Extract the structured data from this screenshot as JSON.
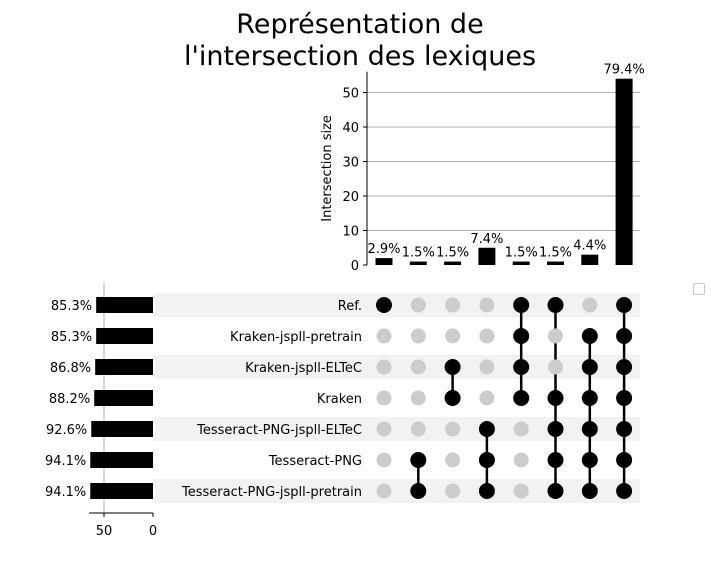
{
  "chart_data": {
    "type": "upset",
    "title_lines": [
      "Représentation de",
      "l'intersection des lexiques"
    ],
    "intersection_axis": {
      "label": "Intersection size",
      "ylim": [
        0,
        56
      ],
      "ticks": [
        0,
        10,
        20,
        30,
        40,
        50
      ],
      "grid": true
    },
    "sets": [
      {
        "name": "Ref.",
        "size": 58,
        "label": "85.3%"
      },
      {
        "name": "Kraken-jspll-pretrain",
        "size": 58,
        "label": "85.3%"
      },
      {
        "name": "Kraken-jspll-ELTeC",
        "size": 59,
        "label": "86.8%"
      },
      {
        "name": "Kraken",
        "size": 60,
        "label": "88.2%"
      },
      {
        "name": "Tesseract-PNG-jspll-ELTeC",
        "size": 63,
        "label": "92.6%"
      },
      {
        "name": "Tesseract-PNG",
        "size": 64,
        "label": "94.1%"
      },
      {
        "name": "Tesseract-PNG-jspll-pretrain",
        "size": 64,
        "label": "94.1%"
      }
    ],
    "set_size_axis": {
      "ticks": [
        50,
        0
      ],
      "xlim": [
        0,
        64
      ]
    },
    "intersections": [
      {
        "value": 2,
        "label": "2.9%",
        "members": [
          0
        ]
      },
      {
        "value": 1,
        "label": "1.5%",
        "members": [
          5,
          6
        ]
      },
      {
        "value": 1,
        "label": "1.5%",
        "members": [
          2,
          3
        ]
      },
      {
        "value": 5,
        "label": "7.4%",
        "members": [
          4,
          5,
          6
        ]
      },
      {
        "value": 1,
        "label": "1.5%",
        "members": [
          0,
          1,
          2,
          3
        ]
      },
      {
        "value": 1,
        "label": "1.5%",
        "members": [
          0,
          3,
          4,
          5,
          6
        ]
      },
      {
        "value": 3,
        "label": "4.4%",
        "members": [
          1,
          2,
          3,
          4,
          5,
          6
        ]
      },
      {
        "value": 54,
        "label": "79.4%",
        "members": [
          0,
          1,
          2,
          3,
          4,
          5,
          6
        ]
      }
    ],
    "legend": {
      "placement": "right",
      "entries": []
    },
    "colors": {
      "bar": "#000000",
      "dot_active": "#000000",
      "dot_inactive": "#cccccc",
      "row_shade": "#f2f2f2",
      "grid": "#b0b0b0"
    }
  }
}
